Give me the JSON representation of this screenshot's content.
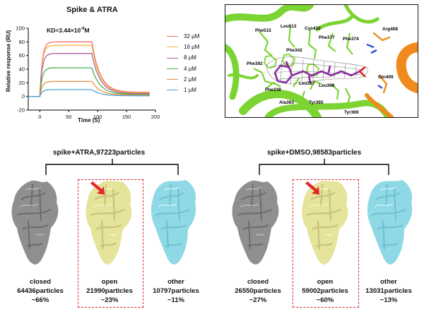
{
  "spr": {
    "title": "Spike & ATRA",
    "kd_prefix": "KD=3.44×10",
    "kd_exponent": "-6",
    "kd_unit": "M",
    "y_ticks": [
      "100",
      "80",
      "60",
      "40",
      "20",
      "0",
      "-20"
    ],
    "x_ticks": [
      "0",
      "50",
      "100",
      "150",
      "200"
    ]
  },
  "chart_data": {
    "type": "line",
    "xlabel": "Time (S)",
    "ylabel": "Relative response (RU)",
    "xlim": [
      -20,
      200
    ],
    "ylim": [
      -20,
      100
    ],
    "assoc_start": 0,
    "dissoc_start": 90,
    "series": [
      {
        "name": "32 μM",
        "color": "#f36b6b",
        "plateau": 80,
        "end": 6
      },
      {
        "name": "16 μM",
        "color": "#f1b43c",
        "plateau": 75,
        "end": 5
      },
      {
        "name": "8 μM",
        "color": "#a65ea8",
        "plateau": 63,
        "end": 4
      },
      {
        "name": "4 μM",
        "color": "#4caf50",
        "plateau": 42,
        "end": 3
      },
      {
        "name": "2 μM",
        "color": "#f08c3c",
        "plateau": 22,
        "end": 2
      },
      {
        "name": "1 μM",
        "color": "#4aa3df",
        "plateau": 10,
        "end": 1
      }
    ]
  },
  "structure": {
    "residues": [
      "Phe515",
      "Leu513",
      "Cys432",
      "Phe377",
      "Phe374",
      "Arg408",
      "Phe342",
      "Phe392",
      "Phe338",
      "Leu387",
      "Leu368",
      "Gln409",
      "Ala363",
      "Tyr365",
      "Tyr369"
    ]
  },
  "classes": {
    "atra": {
      "title": "spike+ATRA,97223particles",
      "items": [
        {
          "name": "closed",
          "count": "64436particles",
          "pct": "~66%"
        },
        {
          "name": "open",
          "count": "21990particles",
          "pct": "~23%"
        },
        {
          "name": "other",
          "count": "10797particles",
          "pct": "~11%"
        }
      ]
    },
    "dmso": {
      "title": "spike+DMSO,98583particles",
      "items": [
        {
          "name": "closed",
          "count": "26550particles",
          "pct": "~27%"
        },
        {
          "name": "open",
          "count": "59002particles",
          "pct": "~60%"
        },
        {
          "name": "other",
          "count": "13031particles",
          "pct": "~13%"
        }
      ]
    }
  },
  "colors": {
    "closed": "#8f8f8f",
    "open": "#e6e39a",
    "other": "#8fd9e6",
    "arrow": "#e3262a",
    "protein_green": "#7cd432",
    "protein_orange": "#f08a1c",
    "ligand": "#8a2a9c"
  }
}
